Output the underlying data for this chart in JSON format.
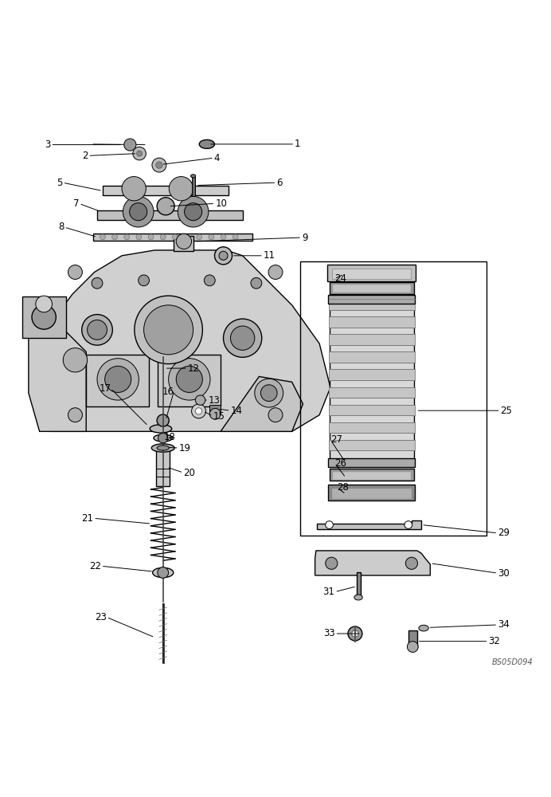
{
  "figure_width": 6.92,
  "figure_height": 10.0,
  "dpi": 100,
  "bg_color": "#ffffff",
  "line_color": "#000000",
  "text_color": "#000000",
  "watermark": "BS05D094"
}
